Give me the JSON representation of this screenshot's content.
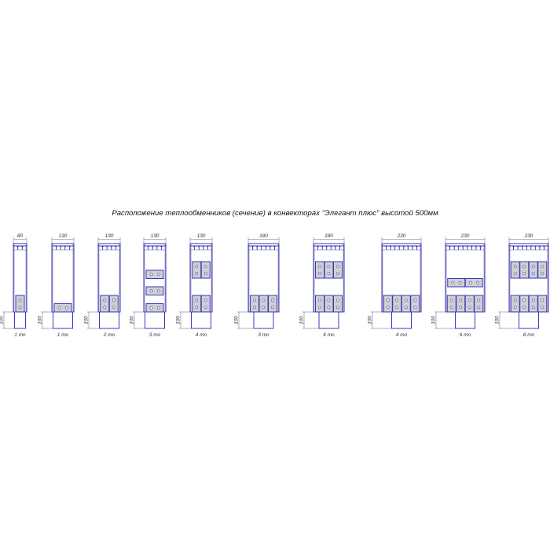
{
  "title": "Расположение теплообменников (сечение) в конвекторах \"Элегант плюс\" высотой 500мм",
  "height_dimension": "100",
  "colors": {
    "outline": "#3a3ab8",
    "exchanger_fill": "#cfcfd4"
  },
  "units": [
    {
      "width_label": "80",
      "width_mm": 80,
      "count_label": "1 то",
      "modules": [
        {
          "row": "bottom",
          "count": 1,
          "orientation": "vertical"
        }
      ]
    },
    {
      "width_label": "130",
      "width_mm": 130,
      "count_label": "1 то",
      "modules": [
        {
          "row": "bottom",
          "count": 1,
          "orientation": "horizontal"
        }
      ]
    },
    {
      "width_label": "130",
      "width_mm": 130,
      "count_label": "2 то",
      "modules": [
        {
          "row": "bottom",
          "count": 2,
          "orientation": "vertical"
        }
      ]
    },
    {
      "width_label": "130",
      "width_mm": 130,
      "count_label": "3 то",
      "modules": [
        {
          "row": "bottom",
          "count": 1,
          "orientation": "horizontal"
        },
        {
          "row": "middle",
          "count": 1,
          "orientation": "horizontal"
        },
        {
          "row": "upper",
          "count": 1,
          "orientation": "horizontal"
        }
      ]
    },
    {
      "width_label": "130",
      "width_mm": 130,
      "count_label": "4 то",
      "modules": [
        {
          "row": "bottom",
          "count": 2,
          "orientation": "vertical"
        },
        {
          "row": "top",
          "count": 2,
          "orientation": "vertical"
        }
      ]
    },
    {
      "width_label": "180",
      "width_mm": 180,
      "count_label": "3 то",
      "modules": [
        {
          "row": "bottom",
          "count": 3,
          "orientation": "vertical"
        }
      ]
    },
    {
      "width_label": "180",
      "width_mm": 180,
      "count_label": "6 то",
      "modules": [
        {
          "row": "bottom",
          "count": 3,
          "orientation": "vertical"
        },
        {
          "row": "top",
          "count": 3,
          "orientation": "vertical"
        }
      ]
    },
    {
      "width_label": "230",
      "width_mm": 230,
      "count_label": "4 то",
      "modules": [
        {
          "row": "bottom",
          "count": 4,
          "orientation": "vertical"
        }
      ]
    },
    {
      "width_label": "230",
      "width_mm": 230,
      "count_label": "6 то",
      "modules": [
        {
          "row": "bottom",
          "count": 4,
          "orientation": "vertical"
        },
        {
          "row": "middle",
          "count": 2,
          "orientation": "horizontal"
        }
      ]
    },
    {
      "width_label": "230",
      "width_mm": 230,
      "count_label": "8 то",
      "modules": [
        {
          "row": "bottom",
          "count": 4,
          "orientation": "vertical"
        },
        {
          "row": "top",
          "count": 4,
          "orientation": "vertical"
        }
      ]
    }
  ]
}
